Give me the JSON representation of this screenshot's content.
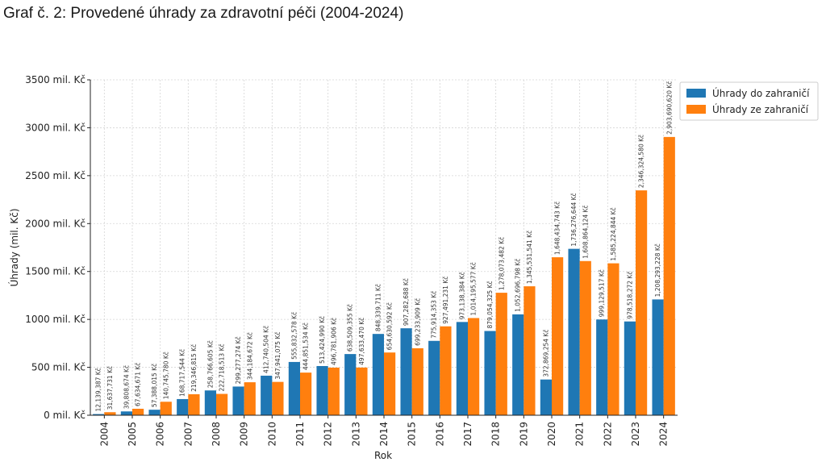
{
  "page": {
    "title": "Graf č. 2: Provedené úhrady za zdravotní péči (2004-2024)"
  },
  "chart_data": {
    "type": "bar",
    "xlabel": "Rok",
    "ylabel": "Úhrady (mil. Kč)",
    "ylim": [
      0,
      3500
    ],
    "yticks": [
      0,
      500,
      1000,
      1500,
      2000,
      2500,
      3000,
      3500
    ],
    "ytick_suffix": " mil. Kč",
    "grid": true,
    "legend_position": "top-right",
    "categories": [
      "2004",
      "2005",
      "2006",
      "2007",
      "2008",
      "2009",
      "2010",
      "2011",
      "2012",
      "2013",
      "2014",
      "2015",
      "2016",
      "2017",
      "2018",
      "2019",
      "2020",
      "2021",
      "2022",
      "2023",
      "2024"
    ],
    "series": [
      {
        "name": "Úhrady do zahraničí",
        "color": "#1f77b4",
        "values": [
          12.139387,
          39.808674,
          57.388015,
          168.717544,
          258.766605,
          299.277274,
          412.740504,
          555.832578,
          513.42499,
          638.509355,
          848.339711,
          907.282688,
          775.914353,
          973.138384,
          879.054325,
          1052.696798,
          372.869254,
          1736.276644,
          999.129517,
          978.518272,
          1208.293228
        ],
        "labels": [
          "12,139,387 Kč",
          "39,808,674 Kč",
          "57,388,015 Kč",
          "168,717,544 Kč",
          "258,766,605 Kč",
          "299,277,274 Kč",
          "412,740,504 Kč",
          "555,832,578 Kč",
          "513,424,990 Kč",
          "638,509,355 Kč",
          "848,339,711 Kč",
          "907,282,688 Kč",
          "775,914,353 Kč",
          "973,138,384 Kč",
          "879,054,325 Kč",
          "1,052,696,798 Kč",
          "372,869,254 Kč",
          "1,736,276,644 Kč",
          "999,129,517 Kč",
          "978,518,272 Kč",
          "1,208,293,228 Kč"
        ]
      },
      {
        "name": "Úhrady ze zahraničí",
        "color": "#ff7f0e",
        "values": [
          31.637731,
          67.634671,
          140.74578,
          219.346815,
          222.718513,
          344.184672,
          347.941075,
          444.851534,
          496.781906,
          497.63347,
          654.630592,
          699.233909,
          927.491231,
          1014.195577,
          1278.073482,
          1345.531541,
          1648.434743,
          1608.864124,
          1585.224844,
          2346.32458,
          2903.69062
        ],
        "labels": [
          "31,637,731 Kč",
          "67,634,671 Kč",
          "140,745,780 Kč",
          "219,346,815 Kč",
          "222,718,513 Kč",
          "344,184,672 Kč",
          "347,941,075 Kč",
          "444,851,534 Kč",
          "496,781,906 Kč",
          "497,633,470 Kč",
          "654,630,592 Kč",
          "699,233,909 Kč",
          "927,491,231 Kč",
          "1,014,195,577 Kč",
          "1,278,073,482 Kč",
          "1,345,531,541 Kč",
          "1,648,434,743 Kč",
          "1,608,864,124 Kč",
          "1,585,224,844 Kč",
          "2,346,324,580 Kč",
          "2,903,690,620 Kč"
        ]
      }
    ]
  }
}
